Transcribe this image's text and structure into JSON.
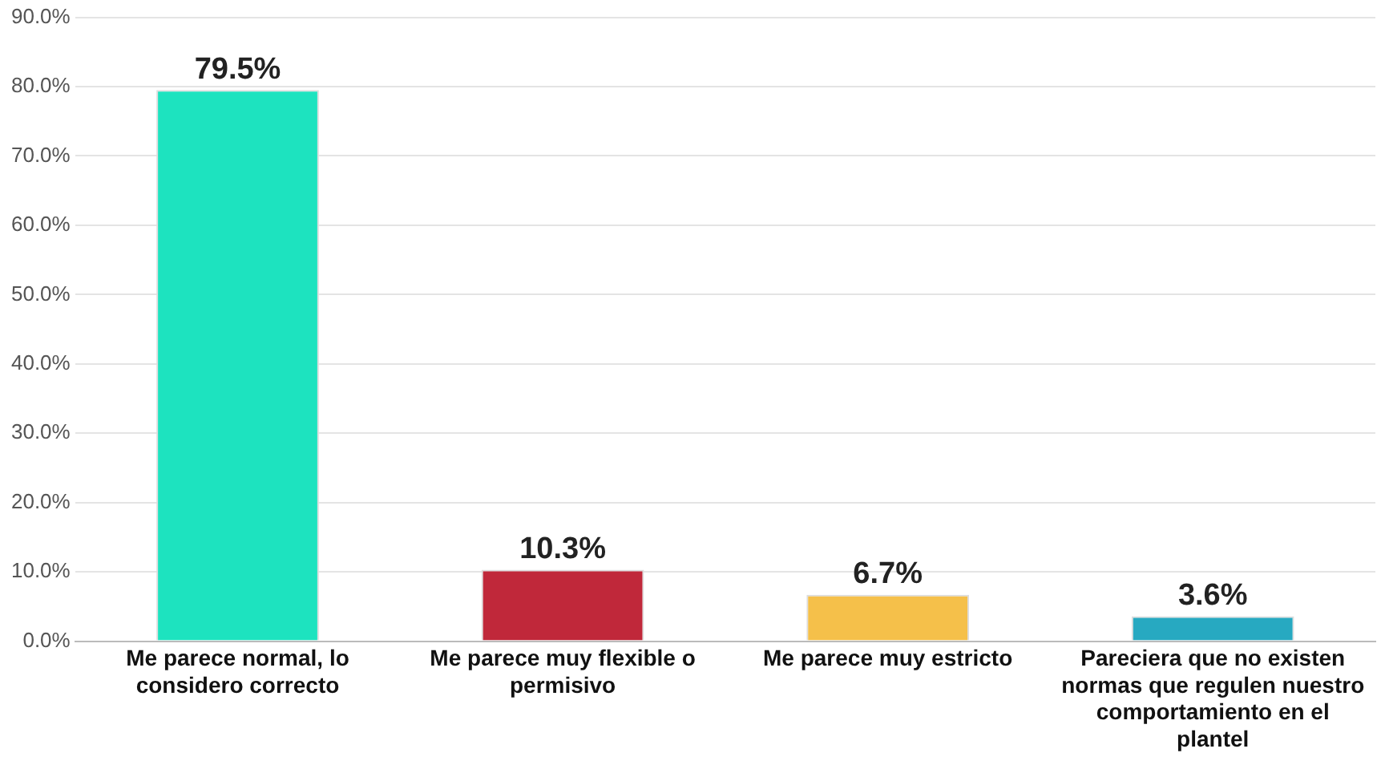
{
  "chart_data": {
    "type": "bar",
    "categories": [
      "Me parece normal, lo considero correcto",
      "Me parece muy flexible o permisivo",
      "Me parece muy estricto",
      "Pareciera que no existen normas que regulen nuestro comportamiento en el plantel"
    ],
    "values": [
      79.5,
      10.3,
      6.7,
      3.6
    ],
    "colors": [
      "#1de3bf",
      "#c0283a",
      "#f5c04a",
      "#27a9c1"
    ],
    "value_labels": [
      "79.5%",
      "10.3%",
      "6.7%",
      "3.6%"
    ],
    "ylim": [
      0,
      90
    ],
    "yticks": [
      {
        "value": 0,
        "label": "0.0%"
      },
      {
        "value": 10,
        "label": "10.0%"
      },
      {
        "value": 20,
        "label": "20.0%"
      },
      {
        "value": 30,
        "label": "30.0%"
      },
      {
        "value": 40,
        "label": "40.0%"
      },
      {
        "value": 50,
        "label": "50.0%"
      },
      {
        "value": 60,
        "label": "60.0%"
      },
      {
        "value": 70,
        "label": "70.0%"
      },
      {
        "value": 80,
        "label": "80.0%"
      },
      {
        "value": 90,
        "label": "90.0%"
      }
    ],
    "grid": "y",
    "legend": false
  }
}
